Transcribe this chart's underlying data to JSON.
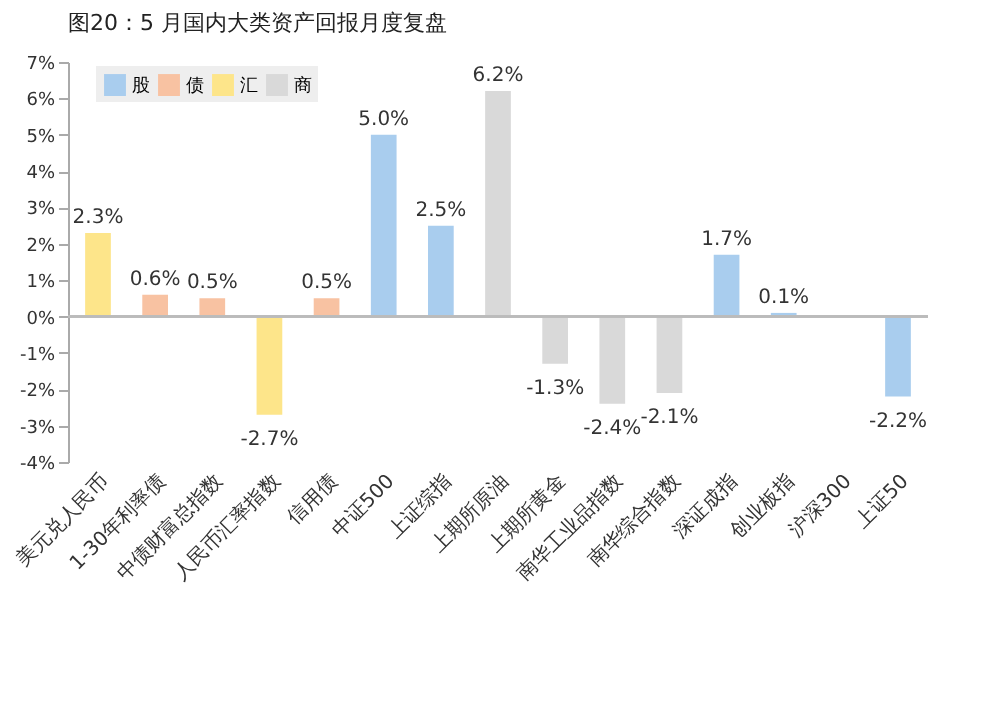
{
  "chart_data": {
    "type": "bar",
    "title": "图20：5 月国内大类资产回报月度复盘",
    "categories": [
      "美元兑人民币",
      "1-30年利率债",
      "中债财富总指数",
      "人民币汇率指数",
      "信用债",
      "中证500",
      "上证综指",
      "上期所原油",
      "上期所黄金",
      "南华工业品指数",
      "南华综合指数",
      "深证成指",
      "创业板指",
      "沪深300",
      "上证50"
    ],
    "series": [
      {
        "name": "股",
        "color": "#a9cdee",
        "values": [
          null,
          null,
          null,
          null,
          null,
          5.0,
          2.5,
          null,
          null,
          null,
          null,
          1.7,
          0.1,
          null,
          -2.2
        ],
        "value_labels": [
          null,
          null,
          null,
          null,
          null,
          "5.0%",
          "2.5%",
          null,
          null,
          null,
          null,
          "1.7%",
          "0.1%",
          null,
          "-2.2%"
        ]
      },
      {
        "name": "债",
        "color": "#f8c2a2",
        "values": [
          null,
          0.6,
          0.5,
          null,
          0.5,
          null,
          null,
          null,
          null,
          null,
          null,
          null,
          null,
          null,
          null
        ],
        "value_labels": [
          null,
          "0.6%",
          "0.5%",
          null,
          "0.5%",
          null,
          null,
          null,
          null,
          null,
          null,
          null,
          null,
          null,
          null
        ]
      },
      {
        "name": "汇",
        "color": "#fde58a",
        "values": [
          2.3,
          null,
          null,
          -2.7,
          null,
          null,
          null,
          null,
          null,
          null,
          null,
          null,
          null,
          null,
          null
        ],
        "value_labels": [
          "2.3%",
          null,
          null,
          "-2.7%",
          null,
          null,
          null,
          null,
          null,
          null,
          null,
          null,
          null,
          null,
          null
        ]
      },
      {
        "name": "商",
        "color": "#d9d9d9",
        "values": [
          null,
          null,
          null,
          null,
          null,
          null,
          null,
          6.2,
          -1.3,
          -2.4,
          -2.1,
          null,
          null,
          null,
          null
        ],
        "value_labels": [
          null,
          null,
          null,
          null,
          null,
          null,
          null,
          "6.2%",
          "-1.3%",
          "-2.4%",
          "-2.1%",
          null,
          null,
          null,
          null
        ]
      }
    ],
    "ylim": [
      -4,
      7
    ],
    "yticks": [
      {
        "value": -4,
        "label": "-4%"
      },
      {
        "value": -3,
        "label": "-3%"
      },
      {
        "value": -2,
        "label": "-2%"
      },
      {
        "value": -1,
        "label": "-1%"
      },
      {
        "value": 0,
        "label": "0%"
      },
      {
        "value": 1,
        "label": "1%"
      },
      {
        "value": 2,
        "label": "2%"
      },
      {
        "value": 3,
        "label": "3%"
      },
      {
        "value": 4,
        "label": "4%"
      },
      {
        "value": 5,
        "label": "5%"
      },
      {
        "value": 6,
        "label": "6%"
      },
      {
        "value": 7,
        "label": "7%"
      }
    ],
    "legend": "top left"
  }
}
